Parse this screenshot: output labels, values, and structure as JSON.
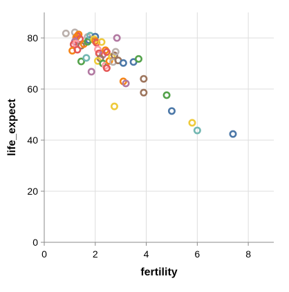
{
  "chart_data": {
    "type": "scatter",
    "xlabel": "fertility",
    "ylabel": "life_expect",
    "xlim": [
      0,
      9
    ],
    "ylim": [
      0,
      90
    ],
    "x_ticks": [
      0,
      2,
      4,
      6,
      8
    ],
    "y_ticks": [
      0,
      20,
      40,
      60,
      80
    ],
    "grid": true,
    "points": [
      {
        "x": 0.85,
        "y": 81.8,
        "color": "#bab0ac"
      },
      {
        "x": 1.2,
        "y": 82.2,
        "color": "#bab0ac"
      },
      {
        "x": 1.3,
        "y": 80.8,
        "color": "#e45756"
      },
      {
        "x": 1.35,
        "y": 81.4,
        "color": "#f58518"
      },
      {
        "x": 1.25,
        "y": 80.2,
        "color": "#f58518"
      },
      {
        "x": 1.4,
        "y": 79.6,
        "color": "#e45756"
      },
      {
        "x": 1.2,
        "y": 78.6,
        "color": "#b279a2"
      },
      {
        "x": 1.15,
        "y": 77.5,
        "color": "#e45756"
      },
      {
        "x": 1.25,
        "y": 77.8,
        "color": "#ff9da6"
      },
      {
        "x": 1.45,
        "y": 77.0,
        "color": "#9d755d"
      },
      {
        "x": 1.55,
        "y": 77.6,
        "color": "#f58518"
      },
      {
        "x": 1.7,
        "y": 80.4,
        "color": "#bab0ac"
      },
      {
        "x": 1.75,
        "y": 79.2,
        "color": "#4c78a8"
      },
      {
        "x": 1.7,
        "y": 78.5,
        "color": "#54a24b"
      },
      {
        "x": 1.8,
        "y": 80.9,
        "color": "#72b7b2"
      },
      {
        "x": 2.0,
        "y": 80.5,
        "color": "#4c78a8"
      },
      {
        "x": 1.95,
        "y": 79.5,
        "color": "#eeca3b"
      },
      {
        "x": 2.0,
        "y": 78.8,
        "color": "#f58518"
      },
      {
        "x": 2.05,
        "y": 78.1,
        "color": "#e45756"
      },
      {
        "x": 2.25,
        "y": 78.4,
        "color": "#eeca3b"
      },
      {
        "x": 1.1,
        "y": 75.0,
        "color": "#f58518"
      },
      {
        "x": 1.3,
        "y": 75.4,
        "color": "#e45756"
      },
      {
        "x": 1.45,
        "y": 70.8,
        "color": "#54a24b"
      },
      {
        "x": 1.65,
        "y": 72.2,
        "color": "#72b7b2"
      },
      {
        "x": 1.85,
        "y": 66.8,
        "color": "#b279a2"
      },
      {
        "x": 2.1,
        "y": 75.5,
        "color": "#ff9da6"
      },
      {
        "x": 2.15,
        "y": 74.0,
        "color": "#e45756"
      },
      {
        "x": 2.3,
        "y": 73.5,
        "color": "#b279a2"
      },
      {
        "x": 2.4,
        "y": 75.2,
        "color": "#f58518"
      },
      {
        "x": 2.45,
        "y": 74.5,
        "color": "#e45756"
      },
      {
        "x": 2.2,
        "y": 72.0,
        "color": "#9d755d"
      },
      {
        "x": 2.1,
        "y": 71.0,
        "color": "#eeca3b"
      },
      {
        "x": 2.3,
        "y": 70.0,
        "color": "#54a24b"
      },
      {
        "x": 2.4,
        "y": 69.2,
        "color": "#ff9da6"
      },
      {
        "x": 2.45,
        "y": 68.2,
        "color": "#e45756"
      },
      {
        "x": 2.55,
        "y": 71.0,
        "color": "#f58518"
      },
      {
        "x": 2.65,
        "y": 72.6,
        "color": "#eeca3b"
      },
      {
        "x": 2.75,
        "y": 73.2,
        "color": "#9d755d"
      },
      {
        "x": 2.8,
        "y": 74.6,
        "color": "#bab0ac"
      },
      {
        "x": 2.7,
        "y": 70.6,
        "color": "#bab0ac"
      },
      {
        "x": 2.9,
        "y": 71.2,
        "color": "#9d755d"
      },
      {
        "x": 2.85,
        "y": 80.0,
        "color": "#b279a2"
      },
      {
        "x": 3.1,
        "y": 70.2,
        "color": "#4c78a8"
      },
      {
        "x": 3.5,
        "y": 70.6,
        "color": "#4c78a8"
      },
      {
        "x": 3.7,
        "y": 71.8,
        "color": "#54a24b"
      },
      {
        "x": 3.1,
        "y": 63.0,
        "color": "#f58518"
      },
      {
        "x": 3.2,
        "y": 62.2,
        "color": "#b279a2"
      },
      {
        "x": 3.9,
        "y": 64.0,
        "color": "#9d755d"
      },
      {
        "x": 3.9,
        "y": 58.6,
        "color": "#9d755d"
      },
      {
        "x": 2.75,
        "y": 53.2,
        "color": "#eeca3b"
      },
      {
        "x": 4.8,
        "y": 57.6,
        "color": "#54a24b"
      },
      {
        "x": 5.0,
        "y": 51.4,
        "color": "#4c78a8"
      },
      {
        "x": 5.8,
        "y": 46.8,
        "color": "#eeca3b"
      },
      {
        "x": 6.0,
        "y": 43.8,
        "color": "#72b7b2"
      },
      {
        "x": 7.4,
        "y": 42.4,
        "color": "#4c78a8"
      }
    ]
  }
}
